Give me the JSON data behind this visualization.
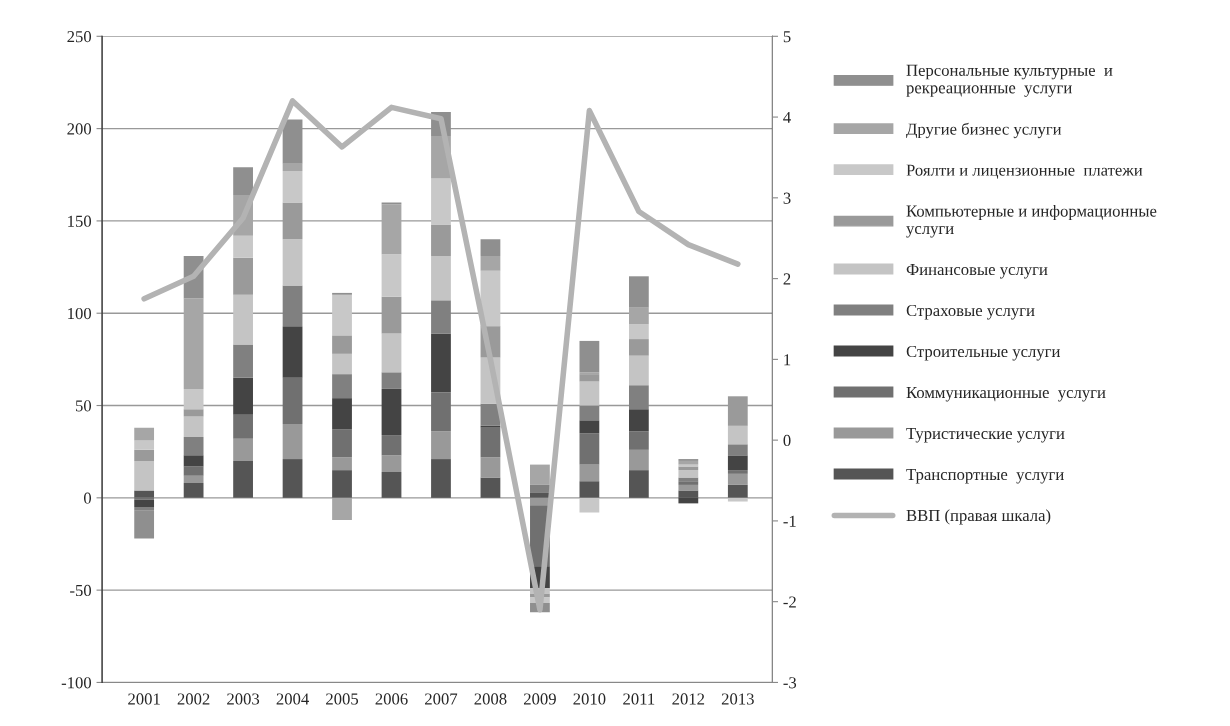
{
  "chart_data": {
    "type": "bar",
    "stacked": true,
    "categories": [
      "2001",
      "2002",
      "2003",
      "2004",
      "2005",
      "2006",
      "2007",
      "2008",
      "2009",
      "2010",
      "2011",
      "2012",
      "2013"
    ],
    "series": [
      {
        "name": "Транспортные  услуги",
        "color": "#555555",
        "values": [
          4,
          8,
          20,
          21,
          15,
          14,
          21,
          11,
          3,
          9,
          15,
          4,
          7
        ]
      },
      {
        "name": "Туристические услуги",
        "color": "#999999",
        "values": [
          0,
          4,
          12,
          19,
          7,
          9,
          15,
          11,
          -4,
          9,
          11,
          3,
          6
        ]
      },
      {
        "name": "Коммуникационные  услуги",
        "color": "#707070",
        "values": [
          -1,
          5,
          13,
          25,
          15,
          11,
          21,
          16,
          -33,
          17,
          10,
          2,
          2
        ]
      },
      {
        "name": "Строительные услуги",
        "color": "#444444",
        "values": [
          -4,
          6,
          20,
          28,
          17,
          25,
          32,
          1,
          -12,
          7,
          12,
          -3,
          8
        ]
      },
      {
        "name": "Страховые услуги",
        "color": "#808080",
        "values": [
          -2,
          10,
          18,
          22,
          13,
          9,
          18,
          12,
          4,
          8,
          13,
          2,
          6
        ]
      },
      {
        "name": "Финансовые услуги",
        "color": "#c4c4c4",
        "values": [
          16,
          11,
          27,
          25,
          11,
          21,
          24,
          25,
          -3,
          13,
          16,
          4,
          10
        ]
      },
      {
        "name": "Компьютерные и информационные\nуслуги",
        "color": "#9a9a9a",
        "values": [
          6,
          4,
          20,
          20,
          10,
          20,
          17,
          17,
          -2,
          4,
          9,
          2,
          16
        ]
      },
      {
        "name": "Роялти и лицензионные  платежи",
        "color": "#c8c8c8",
        "values": [
          5,
          11,
          12,
          17,
          22,
          23,
          25,
          30,
          -3,
          -8,
          8,
          1,
          -2
        ]
      },
      {
        "name": "Другие бизнес услуги",
        "color": "#a6a6a6",
        "values": [
          7,
          49,
          22,
          4,
          -12,
          27,
          23,
          8,
          11,
          1,
          9,
          2,
          0
        ]
      },
      {
        "name": "Персональные культурные  и\nрекреационные  услуги",
        "color": "#8f8f8f",
        "values": [
          -15,
          23,
          15,
          24,
          1,
          1,
          13,
          9,
          -5,
          17,
          17,
          1,
          0
        ]
      },
      {
        "name": "ВВП (правая шкала)",
        "type": "line",
        "axis": "y2",
        "color": "#b3b3b3",
        "values": [
          1.75,
          2.03,
          2.75,
          4.2,
          3.63,
          4.12,
          3.98,
          1.0,
          -2.1,
          4.08,
          2.83,
          2.42,
          2.18
        ]
      }
    ],
    "ylim": [
      -100,
      250
    ],
    "yticks": [
      -100,
      -50,
      0,
      50,
      100,
      150,
      200,
      250
    ],
    "y2lim": [
      -3,
      5
    ],
    "y2ticks": [
      -3,
      -2,
      -1,
      0,
      1,
      2,
      3,
      4,
      5
    ],
    "grid": "y",
    "legend": "right"
  }
}
